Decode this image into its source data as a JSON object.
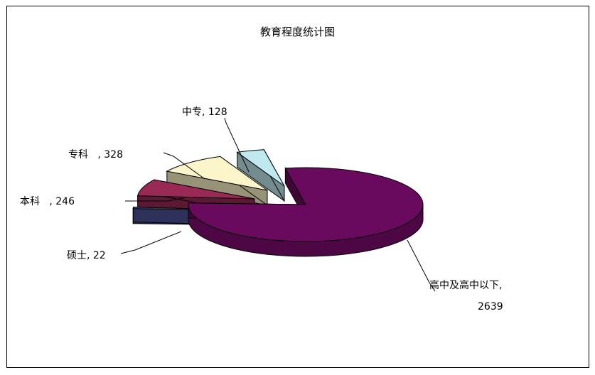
{
  "chart_data": {
    "type": "pie",
    "title": "教育程度统计图",
    "slices": [
      {
        "label": "高中及高中以下",
        "value": 2639,
        "color": "#6a0a5e"
      },
      {
        "label": "硕士",
        "value": 22,
        "color": "#4d5296"
      },
      {
        "label": "本科",
        "value": 246,
        "color": "#992a56"
      },
      {
        "label": "专科",
        "value": 328,
        "color": "#fbf5c9"
      },
      {
        "label": "中专",
        "value": 128,
        "color": "#bfe9ef"
      }
    ],
    "data_labels": [
      {
        "text": "高中及高中以下,"
      },
      {
        "text": "2639"
      },
      {
        "text": "硕士, 22"
      },
      {
        "text": "本科   , 246"
      },
      {
        "text": "专科   , 328"
      },
      {
        "text": "中专, 128"
      }
    ]
  }
}
